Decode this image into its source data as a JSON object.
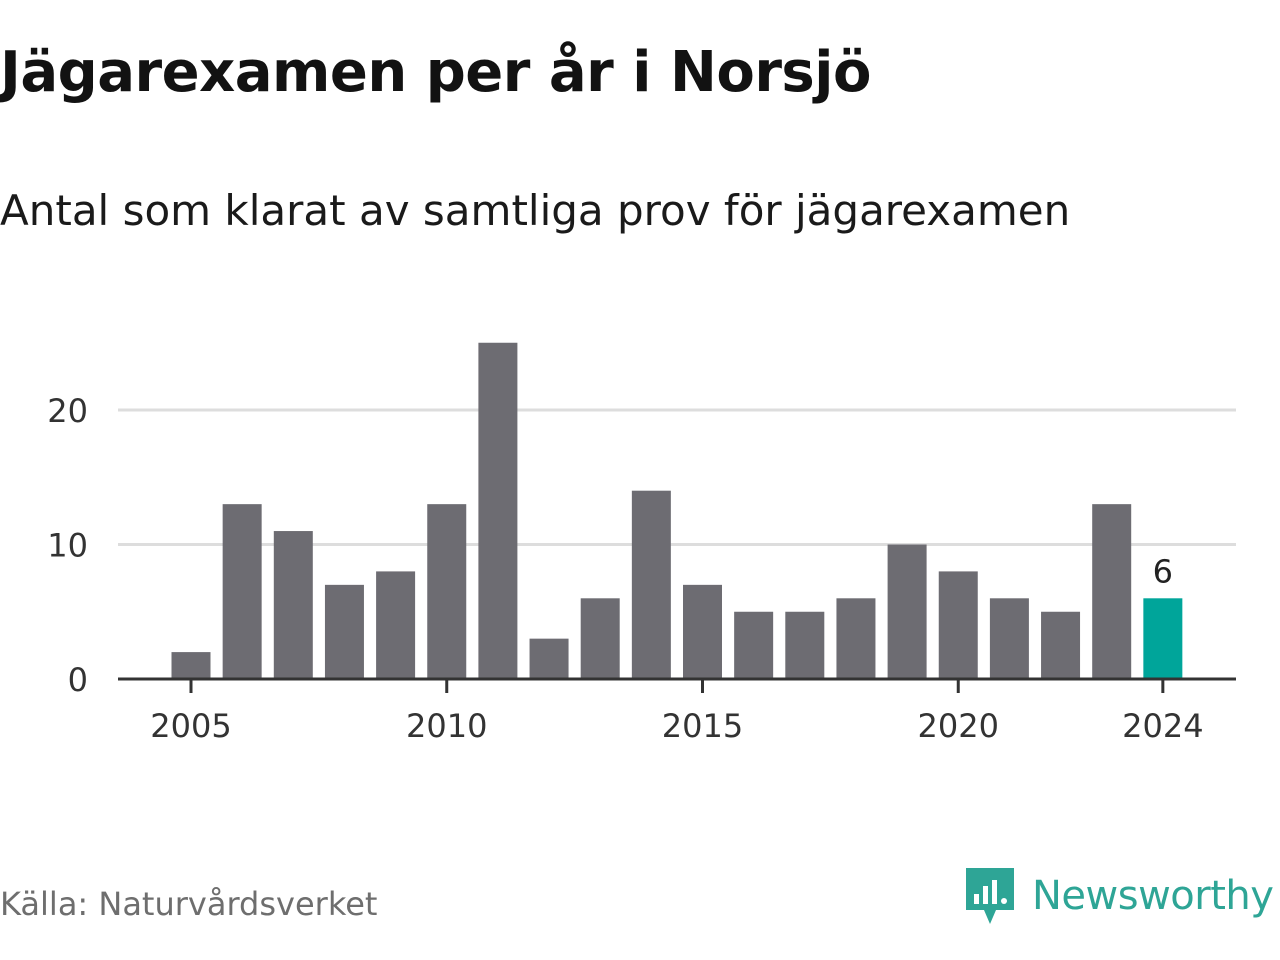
{
  "header": {
    "title": "Jägarexamen per år i Norsjö",
    "subtitle": "Antal som klarat av samtliga prov för jägarexamen"
  },
  "footer": {
    "source": "Källa: Naturvårdsverket",
    "brand": "Newsworthy",
    "brand_icon": "newsworthy-logo-icon"
  },
  "colors": {
    "bar": "#6d6c72",
    "highlight": "#00a59a",
    "grid": "#dddddd",
    "axis": "#333333",
    "brand": "#2ea596"
  },
  "chart_data": {
    "type": "bar",
    "x": [
      2005,
      2006,
      2007,
      2008,
      2009,
      2010,
      2011,
      2012,
      2013,
      2014,
      2015,
      2016,
      2017,
      2018,
      2019,
      2020,
      2021,
      2022,
      2023,
      2024
    ],
    "values": [
      2,
      13,
      11,
      7,
      8,
      13,
      25,
      3,
      6,
      14,
      7,
      5,
      5,
      6,
      10,
      8,
      6,
      5,
      13,
      6
    ],
    "highlight_index": 19,
    "highlight_label": "6",
    "x_ticks": [
      "2005",
      "2010",
      "2015",
      "2020",
      "2024"
    ],
    "y_ticks": [
      "0",
      "10",
      "20"
    ],
    "ylim": [
      0,
      25
    ],
    "grid": true
  }
}
